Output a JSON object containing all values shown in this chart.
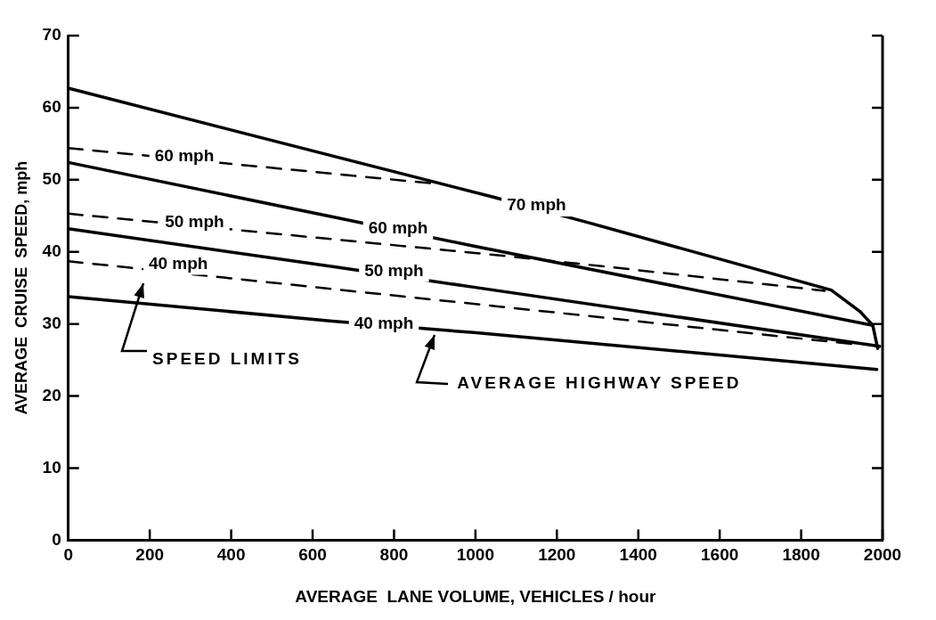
{
  "chart_data": {
    "type": "line",
    "xlabel": "AVERAGE  LANE VOLUME, VEHICLES / hour",
    "ylabel": "AVERAGE  CRUISE  SPEED, mph",
    "xlim": [
      0,
      2000
    ],
    "xticks": [
      0,
      200,
      400,
      600,
      800,
      1000,
      1200,
      1400,
      1600,
      1800,
      2000
    ],
    "ylim": [
      0,
      70
    ],
    "yticks": [
      0,
      10,
      20,
      30,
      40,
      50,
      60,
      70
    ],
    "grid": false,
    "legend": false,
    "marker": "none",
    "series": [
      {
        "color": "#000000",
        "line_style": "solid",
        "x": [
          0,
          1044,
          1281,
          1874,
          1945,
          1976,
          1988
        ],
        "values": [
          62.7,
          47.6,
          44.0,
          34.7,
          31.7,
          29.8,
          26.6
        ]
      },
      {
        "color": "#000000",
        "line_style": "solid",
        "x": [
          0,
          671,
          996,
          1976
        ],
        "values": [
          52.4,
          44.6,
          40.8,
          29.8
        ]
      },
      {
        "color": "#000000",
        "line_style": "solid",
        "x": [
          0,
          657,
          996,
          1993
        ],
        "values": [
          43.2,
          37.9,
          35.1,
          26.9
        ]
      },
      {
        "color": "#000000",
        "line_style": "solid",
        "x": [
          0,
          648,
          996,
          1986
        ],
        "values": [
          33.8,
          30.4,
          28.8,
          23.7
        ]
      },
      {
        "color": "#000000",
        "line_style": "dashed",
        "x": [
          0,
          894
        ],
        "values": [
          54.4,
          49.5
        ]
      },
      {
        "color": "#000000",
        "line_style": "dashed",
        "x": [
          0,
          1044,
          1329,
          1858
        ],
        "values": [
          45.3,
          39.6,
          37.9,
          34.6
        ]
      },
      {
        "color": "#000000",
        "line_style": "dashed",
        "x": [
          0,
          1044,
          1929
        ],
        "values": [
          38.7,
          32.5,
          27.2
        ]
      }
    ],
    "annotations": [
      {
        "text": "60 mph",
        "x": 285,
        "y": 53.2
      },
      {
        "text": "50 mph",
        "x": 310,
        "y": 44.1
      },
      "40 mph",
      {
        "text": "70 mph",
        "x": 1150,
        "y": 46.4
      },
      {
        "text": "60 mph",
        "x": 810,
        "y": 43.2
      },
      {
        "text": "50 mph",
        "x": 800,
        "y": 37.3
      },
      {
        "text": "40 mph",
        "x": 775,
        "y": 30.0
      },
      "SPEED LIMITS",
      "AVERAGE HIGHWAY SPEED"
    ]
  }
}
